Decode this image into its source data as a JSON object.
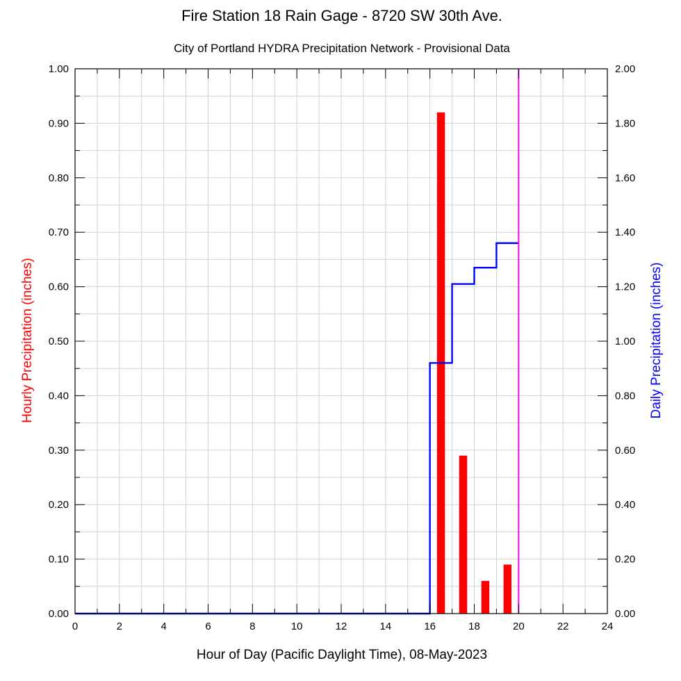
{
  "chart_data": {
    "type": "bar",
    "title": "Fire Station 18 Rain Gage - 8720 SW 30th Ave.",
    "subtitle": "City of Portland HYDRA Precipitation Network - Provisional Data",
    "xlabel": "Hour of Day (Pacific Daylight Time), 08-May-2023",
    "ylabel": "Hourly Precipitation (inches)",
    "y2label": "Daily Precipitation (inches)",
    "xlim": [
      0,
      24
    ],
    "ylim": [
      0,
      1.0
    ],
    "y2lim": [
      0,
      2.0
    ],
    "x_ticks": [
      "0",
      "2",
      "4",
      "6",
      "8",
      "10",
      "12",
      "14",
      "16",
      "18",
      "20",
      "22",
      "24"
    ],
    "y_ticks": [
      "0.00",
      "0.10",
      "0.20",
      "0.30",
      "0.40",
      "0.50",
      "0.60",
      "0.70",
      "0.80",
      "0.90",
      "1.00"
    ],
    "y2_ticks": [
      "0.00",
      "0.20",
      "0.40",
      "0.60",
      "0.80",
      "1.00",
      "1.20",
      "1.40",
      "1.60",
      "1.80",
      "2.00"
    ],
    "grid": true,
    "series": [
      {
        "type": "bar",
        "axis": "left",
        "color": "#ff0000",
        "x": [
          16.5,
          17.5,
          18.5,
          19.5
        ],
        "values": [
          0.92,
          0.29,
          0.06,
          0.09
        ]
      },
      {
        "type": "step",
        "axis": "right",
        "color": "#0000ff",
        "x": [
          0,
          16,
          17,
          18,
          19,
          20
        ],
        "values": [
          0.0,
          0.92,
          1.21,
          1.27,
          1.36,
          1.36
        ]
      }
    ],
    "marker_line": {
      "x": 20,
      "color": "#ff00ff"
    }
  }
}
